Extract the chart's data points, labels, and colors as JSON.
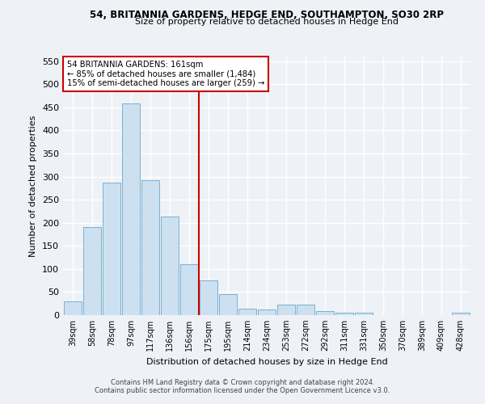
{
  "title_line1": "54, BRITANNIA GARDENS, HEDGE END, SOUTHAMPTON, SO30 2RP",
  "title_line2": "Size of property relative to detached houses in Hedge End",
  "xlabel": "Distribution of detached houses by size in Hedge End",
  "ylabel": "Number of detached properties",
  "categories": [
    "39sqm",
    "58sqm",
    "78sqm",
    "97sqm",
    "117sqm",
    "136sqm",
    "156sqm",
    "175sqm",
    "195sqm",
    "214sqm",
    "234sqm",
    "253sqm",
    "272sqm",
    "292sqm",
    "311sqm",
    "331sqm",
    "350sqm",
    "370sqm",
    "389sqm",
    "409sqm",
    "428sqm"
  ],
  "values": [
    30,
    191,
    287,
    459,
    292,
    213,
    110,
    75,
    46,
    14,
    13,
    22,
    22,
    9,
    6,
    5,
    0,
    0,
    0,
    0,
    5
  ],
  "bar_color": "#cce0f0",
  "bar_edge_color": "#7ab0d4",
  "background_color": "#eef2f7",
  "grid_color": "#ffffff",
  "property_line_x": 6.5,
  "annotation_line1": "54 BRITANNIA GARDENS: 161sqm",
  "annotation_line2": "← 85% of detached houses are smaller (1,484)",
  "annotation_line3": "15% of semi-detached houses are larger (259) →",
  "annotation_box_color": "#ffffff",
  "annotation_box_edge_color": "#cc0000",
  "property_line_color": "#cc0000",
  "ylim": [
    0,
    560
  ],
  "yticks": [
    0,
    50,
    100,
    150,
    200,
    250,
    300,
    350,
    400,
    450,
    500,
    550
  ],
  "footnote1": "Contains HM Land Registry data © Crown copyright and database right 2024.",
  "footnote2": "Contains public sector information licensed under the Open Government Licence v3.0."
}
